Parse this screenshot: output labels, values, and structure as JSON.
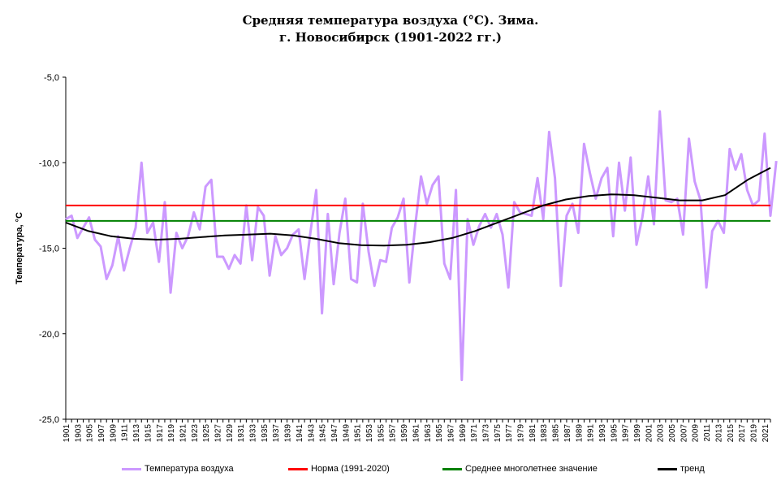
{
  "chart_data": {
    "type": "line",
    "title": "Средняя температура воздуха (°С). Зима.",
    "subtitle": "г. Новосибирск (1901-2022 гг.)",
    "xlabel": "",
    "ylabel": "Температура, °С",
    "ylim": [
      -25.0,
      -5.0
    ],
    "yticks": [
      "-5,0",
      "-10,0",
      "-15,0",
      "-20,0",
      "-25,0"
    ],
    "x_start": 1901,
    "x_end": 2022,
    "xtick_labels": [
      "1901",
      "1903",
      "1905",
      "1907",
      "1909",
      "1911",
      "1913",
      "1915",
      "1917",
      "1919",
      "1921",
      "1923",
      "1925",
      "1927",
      "1929",
      "1931",
      "1933",
      "1935",
      "1937",
      "1939",
      "1941",
      "1943",
      "1945",
      "1947",
      "1949",
      "1951",
      "1953",
      "1955",
      "1957",
      "1959",
      "1961",
      "1963",
      "1965",
      "1967",
      "1969",
      "1971",
      "1973",
      "1975",
      "1977",
      "1979",
      "1981",
      "1983",
      "1985",
      "1987",
      "1989",
      "1991",
      "1993",
      "1995",
      "1997",
      "1999",
      "2001",
      "2003",
      "2005",
      "2007",
      "2009",
      "2011",
      "2013",
      "2015",
      "2017",
      "2019",
      "2021"
    ],
    "grid": false,
    "legend_position": "bottom",
    "series": [
      {
        "name": "Температура воздуха",
        "color": "#CC99FF",
        "values": [
          -13.3,
          -13.1,
          -14.4,
          -13.8,
          -13.2,
          -14.5,
          -14.9,
          -16.8,
          -16.0,
          -14.3,
          -16.3,
          -15.0,
          -13.8,
          -10.0,
          -14.1,
          -13.5,
          -15.8,
          -12.3,
          -17.6,
          -14.1,
          -15.0,
          -14.3,
          -12.9,
          -13.9,
          -11.4,
          -11.0,
          -15.5,
          -15.5,
          -16.2,
          -15.4,
          -15.9,
          -12.5,
          -15.7,
          -12.6,
          -13.1,
          -16.6,
          -14.3,
          -15.4,
          -15.0,
          -14.2,
          -13.9,
          -16.8,
          -14.1,
          -11.6,
          -18.8,
          -13.0,
          -17.1,
          -14.1,
          -12.1,
          -16.8,
          -17.0,
          -12.4,
          -15.2,
          -17.2,
          -15.7,
          -15.8,
          -13.8,
          -13.2,
          -12.1,
          -17.0,
          -13.7,
          -10.8,
          -12.4,
          -11.3,
          -10.8,
          -15.9,
          -16.8,
          -11.6,
          -22.7,
          -13.3,
          -14.8,
          -13.7,
          -13.0,
          -13.8,
          -13.0,
          -14.2,
          -17.3,
          -12.3,
          -12.9,
          -13.0,
          -13.1,
          -10.9,
          -13.3,
          -8.2,
          -10.9,
          -17.2,
          -13.1,
          -12.4,
          -14.1,
          -8.9,
          -10.6,
          -12.1,
          -10.9,
          -10.3,
          -14.3,
          -10.0,
          -12.8,
          -9.7,
          -14.8,
          -13.2,
          -10.8,
          -13.6,
          -7.0,
          -12.2,
          -12.3,
          -12.1,
          -14.2,
          -8.6,
          -11.1,
          -12.2,
          -17.3,
          -14.0,
          -13.4,
          -14.1,
          -9.2,
          -10.4,
          -9.5,
          -11.6,
          -12.5,
          -12.2,
          -8.3,
          -13.1,
          -9.9
        ]
      },
      {
        "name": "Норма (1991-2020)",
        "color": "#FF0000",
        "values": [
          -12.5
        ]
      },
      {
        "name": "Среднее многолетнее значение",
        "color": "#008000",
        "values": [
          -13.4
        ]
      },
      {
        "name": "тренд",
        "color": "#000000",
        "values": [
          -13.5,
          -14.0,
          -14.3,
          -14.45,
          -14.5,
          -14.45,
          -14.35,
          -14.25,
          -14.2,
          -14.15,
          -14.25,
          -14.45,
          -14.7,
          -14.82,
          -14.85,
          -14.8,
          -14.65,
          -14.4,
          -14.0,
          -13.5,
          -13.0,
          -12.5,
          -12.15,
          -11.95,
          -11.85,
          -11.9,
          -12.05,
          -12.2,
          -12.2,
          -11.9,
          -11.0,
          -10.3
        ]
      }
    ]
  }
}
